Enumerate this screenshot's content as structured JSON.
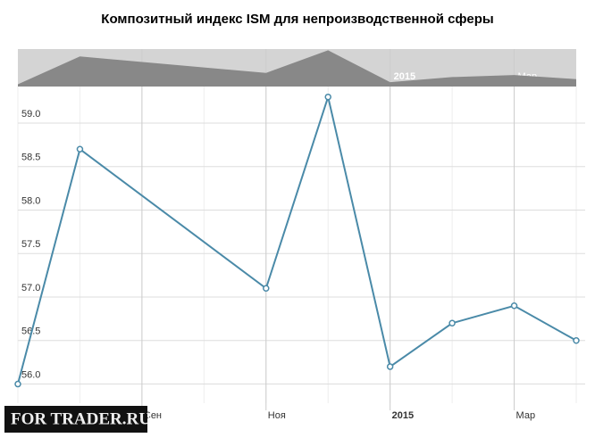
{
  "chart_data": {
    "type": "line",
    "title": "Композитный индекс ISM для непроизводственной сферы",
    "x": [
      "2014-07",
      "2014-08",
      "2014-11",
      "2014-12",
      "2015-01",
      "2015-02",
      "2015-03",
      "2015-04"
    ],
    "series": [
      {
        "name": "ISM",
        "color": "#4a8aa8",
        "values": [
          56.0,
          58.7,
          57.1,
          59.3,
          56.2,
          56.7,
          56.9,
          56.5
        ]
      }
    ],
    "xlim": [
      "2014-07",
      "2015-04"
    ],
    "xticks": [
      {
        "value": "2014-09",
        "label": "Сен"
      },
      {
        "value": "2014-11",
        "label": "Ноя"
      },
      {
        "value": "2015-01",
        "label": "2015"
      },
      {
        "value": "2015-03",
        "label": "Мар"
      }
    ],
    "ylim": [
      55.78,
      59.42
    ],
    "yticks": [
      {
        "value": 56,
        "label": "56.0"
      },
      {
        "value": 56.5,
        "label": "56.5"
      },
      {
        "value": 57,
        "label": "57.0"
      },
      {
        "value": 57.5,
        "label": "57.5"
      },
      {
        "value": 58,
        "label": "58.0"
      },
      {
        "value": 58.5,
        "label": "58.5"
      },
      {
        "value": 59,
        "label": "59.0"
      }
    ],
    "grid": true,
    "watermark": "FOR TRADER.RU"
  }
}
